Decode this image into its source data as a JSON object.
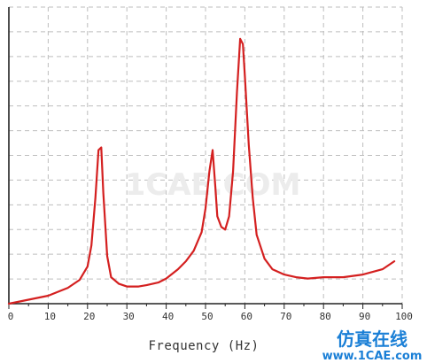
{
  "chart_data": {
    "type": "line",
    "title": "",
    "xlabel": "Frequency (Hz)",
    "ylabel": "",
    "xlim": [
      0,
      100
    ],
    "ylim": [
      0,
      1.12
    ],
    "grid": {
      "horizontal": true,
      "vertical": true
    },
    "x_ticks": [
      "0",
      "10",
      "20",
      "30",
      "40",
      "50",
      "60",
      "70",
      "80",
      "90",
      "100"
    ],
    "series": [
      {
        "color": "#d42020",
        "x": [
          0,
          5,
          10,
          15,
          18,
          20,
          21,
          22,
          22.8,
          23.5,
          24,
          25,
          26,
          28,
          30,
          33,
          35,
          38,
          40,
          43,
          45,
          47,
          49,
          50,
          51,
          51.8,
          52.5,
          53,
          54,
          55,
          56,
          57,
          58,
          58.8,
          59.5,
          60,
          61,
          62,
          63,
          65,
          67,
          70,
          73,
          76,
          80,
          85,
          90,
          95,
          98
        ],
        "y": [
          0.0,
          0.015,
          0.03,
          0.06,
          0.09,
          0.14,
          0.22,
          0.4,
          0.58,
          0.59,
          0.42,
          0.18,
          0.1,
          0.075,
          0.065,
          0.065,
          0.07,
          0.08,
          0.095,
          0.13,
          0.16,
          0.2,
          0.27,
          0.36,
          0.5,
          0.58,
          0.44,
          0.33,
          0.29,
          0.28,
          0.33,
          0.5,
          0.8,
          1.0,
          0.98,
          0.86,
          0.6,
          0.4,
          0.26,
          0.17,
          0.13,
          0.11,
          0.1,
          0.095,
          0.1,
          0.1,
          0.11,
          0.13,
          0.16
        ]
      }
    ]
  },
  "watermark_text": "1CAE.COM",
  "logo": {
    "chinese": "仿真在线",
    "url": "www.1CAE.com"
  }
}
